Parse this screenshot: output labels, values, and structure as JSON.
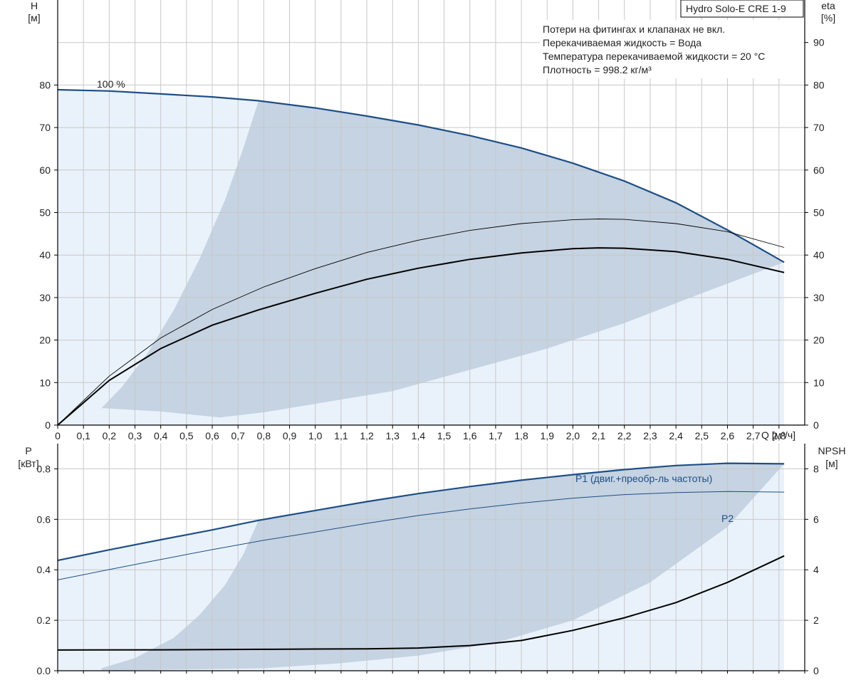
{
  "chart_data": [
    {
      "type": "line",
      "title": "Hydro Solo-E CRE 1-9",
      "notes": [
        "Потери на фитингах и клапанах не вкл.",
        "Перекачиваемая жидкость = Вода",
        "Температура перекачиваемой жидкости = 20 °C",
        "Плотность = 998.2 кг/м³"
      ],
      "xlabel": "Q [м³/ч]",
      "xlim": [
        0,
        2.9
      ],
      "x_ticks": [
        "0",
        "0,1",
        "0,2",
        "0,3",
        "0,4",
        "0,5",
        "0,6",
        "0,7",
        "0,8",
        "0,9",
        "1,0",
        "1,1",
        "1,2",
        "1,3",
        "1,4",
        "1,5",
        "1,6",
        "1,7",
        "1,8",
        "1,9",
        "2,0",
        "2,1",
        "2,2",
        "2,3",
        "2,4",
        "2,5",
        "2,6",
        "2,7",
        "2,8"
      ],
      "y_left": {
        "label_line1": "H",
        "label_line2": "[м]",
        "lim": [
          0,
          100
        ],
        "ticks": [
          "0",
          "10",
          "20",
          "30",
          "40",
          "50",
          "60",
          "70",
          "80"
        ]
      },
      "y_right": {
        "label_line1": "eta",
        "label_line2": "[%]",
        "lim": [
          0,
          100
        ],
        "ticks": [
          "0",
          "10",
          "20",
          "30",
          "40",
          "50",
          "60",
          "70",
          "80",
          "90"
        ]
      },
      "speed_label": "100 %",
      "series": [
        {
          "key": "H",
          "axis": "left",
          "color": "#1f4e85",
          "x": [
            0,
            0.2,
            0.4,
            0.6,
            0.78,
            1.0,
            1.2,
            1.4,
            1.6,
            1.8,
            2.0,
            2.2,
            2.4,
            2.6,
            2.82
          ],
          "y": [
            78.9,
            78.6,
            77.9,
            77.2,
            76.3,
            74.6,
            72.7,
            70.6,
            68.1,
            65.2,
            61.6,
            57.4,
            52.3,
            45.9,
            38.3
          ]
        },
        {
          "key": "eta_motor",
          "axis": "right",
          "color": "#000000",
          "x": [
            0,
            0.2,
            0.4,
            0.6,
            0.78,
            1.0,
            1.2,
            1.4,
            1.6,
            1.8,
            2.0,
            2.1,
            2.2,
            2.4,
            2.6,
            2.82
          ],
          "y": [
            0,
            10.5,
            18.0,
            23.5,
            27.1,
            31.0,
            34.3,
            36.9,
            39.0,
            40.5,
            41.5,
            41.7,
            41.6,
            40.8,
            39.0,
            35.9
          ]
        },
        {
          "key": "eta_pump",
          "axis": "right",
          "color": "#000000",
          "x": [
            0,
            0.2,
            0.4,
            0.6,
            0.8,
            1.0,
            1.2,
            1.4,
            1.6,
            1.8,
            2.0,
            2.1,
            2.2,
            2.4,
            2.6,
            2.82
          ],
          "y": [
            0,
            11.5,
            20.5,
            27.2,
            32.5,
            36.8,
            40.6,
            43.5,
            45.8,
            47.4,
            48.3,
            48.5,
            48.4,
            47.4,
            45.5,
            41.8
          ]
        }
      ],
      "envelope": {
        "upper_x": [
          0.17,
          0.25,
          0.35,
          0.45,
          0.55,
          0.65,
          0.72,
          0.78
        ],
        "upper_y": [
          4.0,
          9.0,
          17.0,
          27.0,
          39.0,
          53.0,
          65.0,
          76.3
        ],
        "lower_x": [
          0.17,
          0.4,
          0.63,
          0.8,
          1.0,
          1.3,
          1.6,
          1.9,
          2.2,
          2.5,
          2.82
        ],
        "lower_y": [
          4.0,
          3.2,
          1.8,
          3.0,
          5.0,
          8.0,
          13.0,
          18.0,
          24.0,
          31.0,
          38.3
        ]
      },
      "colors": {
        "envelope": "#c5d3e2",
        "region": "#e9f2fb",
        "grid": "#c8c8c8"
      }
    },
    {
      "type": "line",
      "xlim": [
        0,
        2.9
      ],
      "y_left": {
        "label_line1": "P",
        "label_line2": "[кВт]",
        "lim": [
          0,
          0.9
        ],
        "ticks": [
          "0.0",
          "0.2",
          "0.4",
          "0.6",
          "0.8"
        ]
      },
      "y_right": {
        "label_line1": "NPSH",
        "label_line2": "[м]",
        "lim": [
          0,
          9
        ],
        "ticks": [
          "0",
          "2",
          "4",
          "6",
          "8"
        ]
      },
      "series": [
        {
          "key": "P1",
          "name": "P1 (двиг.+преобр-ль частоты)",
          "axis": "left",
          "color": "#1f4e85",
          "x": [
            0,
            0.2,
            0.4,
            0.6,
            0.78,
            1.0,
            1.2,
            1.4,
            1.6,
            1.8,
            2.0,
            2.2,
            2.4,
            2.6,
            2.82
          ],
          "y": [
            0.437,
            0.479,
            0.519,
            0.558,
            0.596,
            0.635,
            0.67,
            0.702,
            0.73,
            0.755,
            0.777,
            0.797,
            0.813,
            0.822,
            0.82
          ]
        },
        {
          "key": "P2",
          "name": "P2",
          "axis": "left",
          "color": "#1f4e85",
          "x": [
            0,
            0.2,
            0.4,
            0.6,
            0.8,
            1.0,
            1.2,
            1.4,
            1.6,
            1.8,
            2.0,
            2.2,
            2.4,
            2.6,
            2.82
          ],
          "y": [
            0.36,
            0.401,
            0.441,
            0.48,
            0.517,
            0.55,
            0.584,
            0.615,
            0.641,
            0.664,
            0.684,
            0.698,
            0.706,
            0.71,
            0.708
          ]
        },
        {
          "key": "NPSH",
          "axis": "right",
          "color": "#000000",
          "x": [
            0,
            0.4,
            0.8,
            1.0,
            1.2,
            1.4,
            1.6,
            1.8,
            2.0,
            2.2,
            2.4,
            2.6,
            2.82
          ],
          "y": [
            0.82,
            0.83,
            0.85,
            0.86,
            0.87,
            0.9,
            1.0,
            1.2,
            1.6,
            2.1,
            2.7,
            3.5,
            4.55
          ]
        }
      ],
      "envelope": {
        "upper_x": [
          0.17,
          0.3,
          0.45,
          0.55,
          0.65,
          0.72,
          0.78
        ],
        "upper_y": [
          0.01,
          0.05,
          0.13,
          0.22,
          0.34,
          0.46,
          0.596
        ],
        "lower_x": [
          0.17,
          0.5,
          0.8,
          1.1,
          1.4,
          1.7,
          2.0,
          2.3,
          2.6,
          2.82
        ],
        "lower_y": [
          0.0,
          0.005,
          0.01,
          0.03,
          0.06,
          0.11,
          0.2,
          0.35,
          0.57,
          0.82
        ]
      }
    }
  ]
}
